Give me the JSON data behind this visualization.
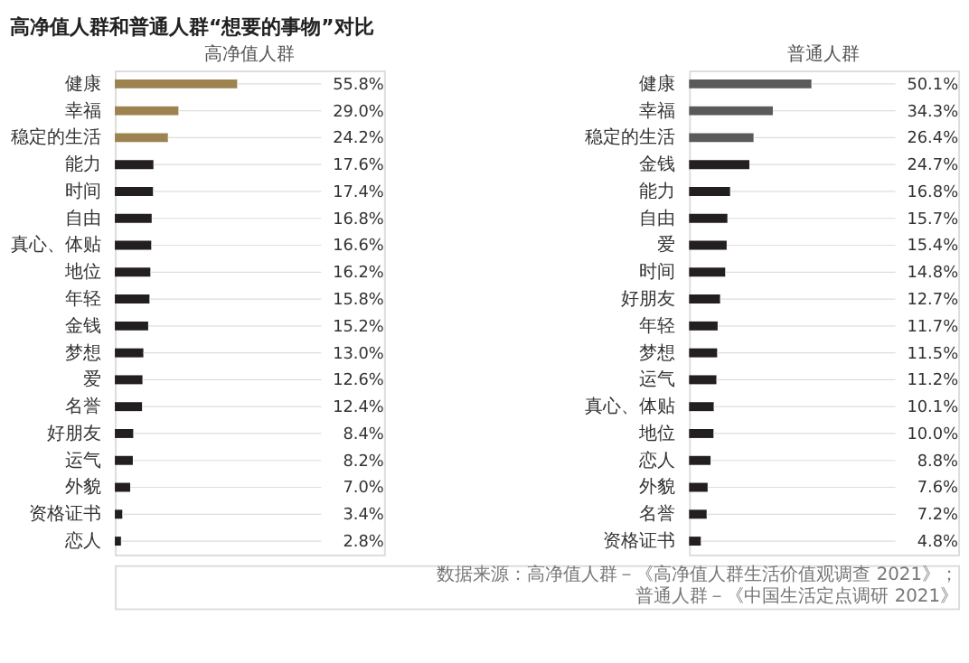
{
  "chart_data": [
    {
      "type": "bar",
      "orientation": "horizontal",
      "title": "高净值人群和普通人群“想要的事物”对比",
      "subtitle": "高净值人群",
      "categories": [
        "健康",
        "幸福",
        "稳定的生活",
        "能力",
        "时间",
        "自由",
        "真心、体贴",
        "地位",
        "年轻",
        "金钱",
        "梦想",
        "爱",
        "名誉",
        "好朋友",
        "运气",
        "外貌",
        "资格证书",
        "恋人"
      ],
      "values": [
        55.8,
        29.0,
        24.2,
        17.6,
        17.4,
        16.8,
        16.6,
        16.2,
        15.8,
        15.2,
        13.0,
        12.6,
        12.4,
        8.4,
        8.2,
        7.0,
        3.4,
        2.8
      ],
      "value_labels": [
        "55.8%",
        "29.0%",
        "24.2%",
        "17.6%",
        "17.4%",
        "16.8%",
        "16.6%",
        "16.2%",
        "15.8%",
        "15.2%",
        "13.0%",
        "12.6%",
        "12.4%",
        "8.4%",
        "8.2%",
        "7.0%",
        "3.4%",
        "2.8%"
      ],
      "colors": [
        "#9c8350",
        "#9c8350",
        "#9c8350",
        "#231f20",
        "#231f20",
        "#231f20",
        "#231f20",
        "#231f20",
        "#231f20",
        "#231f20",
        "#231f20",
        "#231f20",
        "#231f20",
        "#231f20",
        "#231f20",
        "#231f20",
        "#231f20",
        "#231f20"
      ]
    },
    {
      "type": "bar",
      "orientation": "horizontal",
      "subtitle": "普通人群",
      "categories": [
        "健康",
        "幸福",
        "稳定的生活",
        "金钱",
        "能力",
        "自由",
        "爱",
        "时间",
        "好朋友",
        "年轻",
        "梦想",
        "运气",
        "真心、体贴",
        "地位",
        "恋人",
        "外貌",
        "名誉",
        "资格证书"
      ],
      "values": [
        50.1,
        34.3,
        26.4,
        24.7,
        16.8,
        15.7,
        15.4,
        14.8,
        12.7,
        11.7,
        11.5,
        11.2,
        10.1,
        10.0,
        8.8,
        7.6,
        7.2,
        4.8
      ],
      "value_labels": [
        "50.1%",
        "34.3%",
        "26.4%",
        "24.7%",
        "16.8%",
        "15.7%",
        "15.4%",
        "14.8%",
        "12.7%",
        "11.7%",
        "11.5%",
        "11.2%",
        "10.1%",
        "10.0%",
        "8.8%",
        "7.6%",
        "7.2%",
        "4.8%"
      ],
      "colors": [
        "#5a5a5a",
        "#5a5a5a",
        "#5a5a5a",
        "#231f20",
        "#231f20",
        "#231f20",
        "#231f20",
        "#231f20",
        "#231f20",
        "#231f20",
        "#231f20",
        "#231f20",
        "#231f20",
        "#231f20",
        "#231f20",
        "#231f20",
        "#231f20",
        "#231f20"
      ],
      "annotations": [
        "数据来源：高净值人群－《高净值人群生活价值观调查 2021》；普通人群－《中国生活定点调研 2021》"
      ]
    }
  ]
}
